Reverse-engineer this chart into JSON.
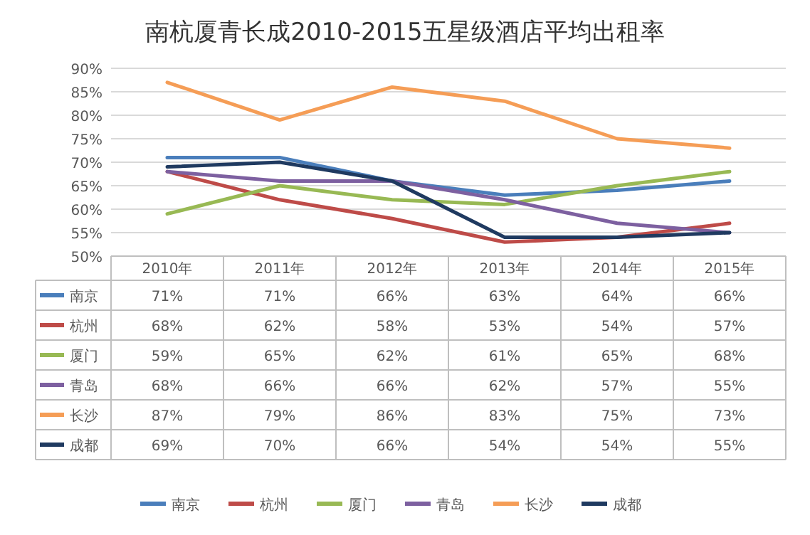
{
  "chart_data": {
    "type": "line",
    "title": "南杭厦青长成2010-2015五星级酒店平均出租率",
    "categories": [
      "2010年",
      "2011年",
      "2012年",
      "2013年",
      "2014年",
      "2015年"
    ],
    "series": [
      {
        "name": "南京",
        "color": "#4a7ebb",
        "values": [
          71,
          71,
          66,
          63,
          64,
          66
        ],
        "value_labels": [
          "71%",
          "71%",
          "66%",
          "63%",
          "64%",
          "66%"
        ]
      },
      {
        "name": "杭州",
        "color": "#be4b48",
        "values": [
          68,
          62,
          58,
          53,
          54,
          57
        ],
        "value_labels": [
          "68%",
          "62%",
          "58%",
          "53%",
          "54%",
          "57%"
        ]
      },
      {
        "name": "厦门",
        "color": "#98b954",
        "values": [
          59,
          65,
          62,
          61,
          65,
          68
        ],
        "value_labels": [
          "59%",
          "65%",
          "62%",
          "61%",
          "65%",
          "68%"
        ]
      },
      {
        "name": "青岛",
        "color": "#7d60a0",
        "values": [
          68,
          66,
          66,
          62,
          57,
          55
        ],
        "value_labels": [
          "68%",
          "66%",
          "66%",
          "62%",
          "57%",
          "55%"
        ]
      },
      {
        "name": "长沙",
        "color": "#f59d56",
        "values": [
          87,
          79,
          86,
          83,
          75,
          73
        ],
        "value_labels": [
          "87%",
          "79%",
          "86%",
          "83%",
          "75%",
          "73%"
        ]
      },
      {
        "name": "成都",
        "color": "#1f3a60",
        "values": [
          69,
          70,
          66,
          54,
          54,
          55
        ],
        "value_labels": [
          "69%",
          "70%",
          "66%",
          "54%",
          "54%",
          "55%"
        ]
      }
    ],
    "ylim": [
      50,
      90
    ],
    "yticks": [
      {
        "value": 50,
        "label": "50%"
      },
      {
        "value": 55,
        "label": "55%"
      },
      {
        "value": 60,
        "label": "60%"
      },
      {
        "value": 65,
        "label": "65%"
      },
      {
        "value": 70,
        "label": "70%"
      },
      {
        "value": 75,
        "label": "75%"
      },
      {
        "value": 80,
        "label": "80%"
      },
      {
        "value": 85,
        "label": "85%"
      },
      {
        "value": 90,
        "label": "90%"
      }
    ],
    "grid": "y",
    "legend": "bottom",
    "marker": "none",
    "line_style": "solid"
  }
}
